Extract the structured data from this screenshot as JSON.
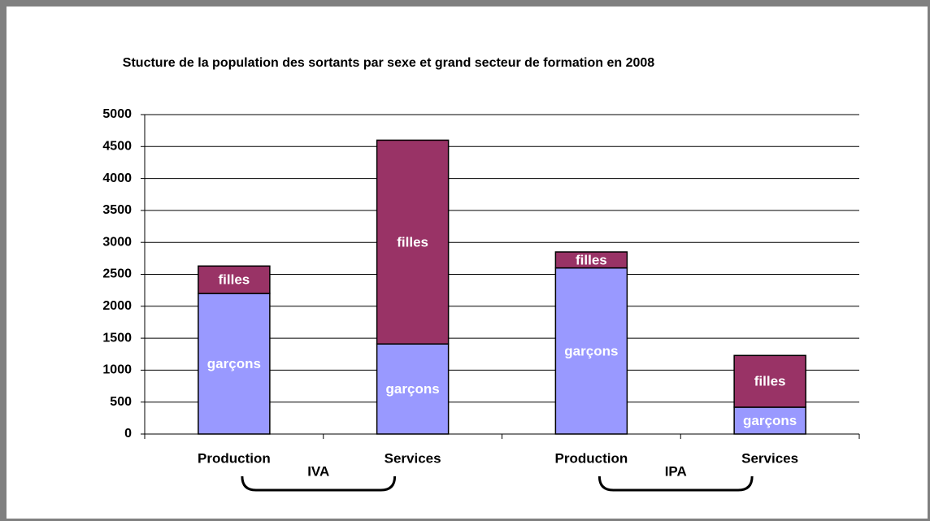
{
  "chart_data": {
    "type": "stacked_bar",
    "title": "Stucture de la population des sortants par sexe et grand secteur de formation en 2008",
    "categories": [
      "Production",
      "Services",
      "Production",
      "Services"
    ],
    "groups": [
      "IVA",
      "IPA"
    ],
    "series": [
      {
        "name": "garçons",
        "color": "#9999ff",
        "values": [
          2200,
          1410,
          2600,
          420
        ]
      },
      {
        "name": "filles",
        "color": "#993366",
        "values": [
          430,
          3190,
          250,
          810
        ]
      }
    ],
    "ylim": [
      0,
      5000
    ],
    "yticks": [
      0,
      500,
      1000,
      1500,
      2000,
      2500,
      3000,
      3500,
      4000,
      4500,
      5000
    ],
    "grid": true
  }
}
